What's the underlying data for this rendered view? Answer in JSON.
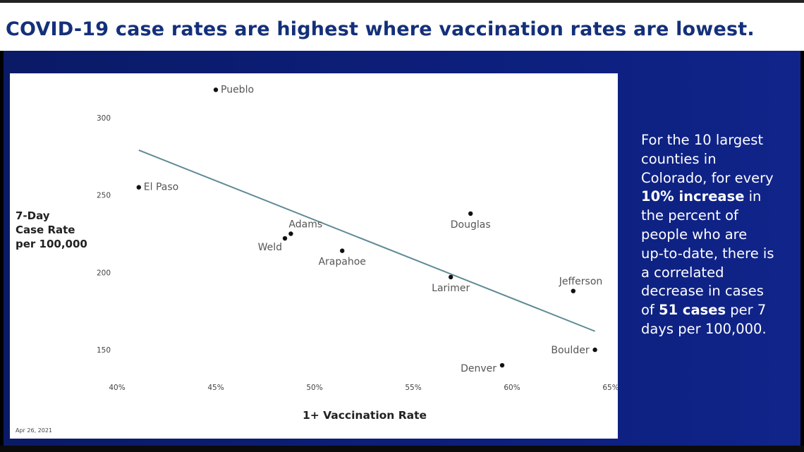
{
  "slide": {
    "title": "COVID-19 case rates are highest where vaccination rates are lowest.",
    "date_stamp": "Apr 26, 2021",
    "note": {
      "line1": "For the 10 largest",
      "line2": "counties in",
      "line3": "Colorado, for every",
      "bold1": "10% increase",
      "line4_rest": " in",
      "line5": "the percent of",
      "line6": "people who are",
      "line7": "up-to-date, there is",
      "line8": "a correlated",
      "line9": "decrease in cases",
      "line10_pre": "of ",
      "bold2": "51 cases",
      "line10_post": " per 7",
      "line11": "days per 100,000."
    }
  },
  "colors": {
    "title": "#14307a",
    "panel": "#0c1f7c",
    "point": "#111111",
    "trend": "#5f8b94",
    "label": "#555555"
  },
  "chart_data": {
    "type": "scatter",
    "title": "",
    "xlabel": "1+ Vaccination Rate",
    "ylabel": [
      "7-Day",
      "Case Rate",
      "per 100,000"
    ],
    "xlim": [
      0.4,
      0.65
    ],
    "ylim": [
      135,
      325
    ],
    "x_ticks": [
      0.4,
      0.45,
      0.5,
      0.55,
      0.6,
      0.65
    ],
    "x_tick_labels": [
      "40%",
      "45%",
      "50%",
      "55%",
      "60%",
      "65%"
    ],
    "y_ticks": [
      150,
      200,
      250,
      300
    ],
    "y_tick_labels": [
      "150",
      "200",
      "250",
      "300"
    ],
    "grid": false,
    "points": [
      {
        "label": "Pueblo",
        "x": 0.45,
        "y": 318,
        "anchor": "start"
      },
      {
        "label": "El Paso",
        "x": 0.411,
        "y": 255,
        "anchor": "start"
      },
      {
        "label": "Adams",
        "x": 0.488,
        "y": 225,
        "anchor": "start"
      },
      {
        "label": "Weld",
        "x": 0.485,
        "y": 222,
        "anchor": "end"
      },
      {
        "label": "Arapahoe",
        "x": 0.514,
        "y": 214,
        "anchor": "middle"
      },
      {
        "label": "Douglas",
        "x": 0.579,
        "y": 238,
        "anchor": "middle"
      },
      {
        "label": "Larimer",
        "x": 0.569,
        "y": 197,
        "anchor": "middle"
      },
      {
        "label": "Jefferson",
        "x": 0.631,
        "y": 188,
        "anchor": "start"
      },
      {
        "label": "Boulder",
        "x": 0.642,
        "y": 150,
        "anchor": "end"
      },
      {
        "label": "Denver",
        "x": 0.595,
        "y": 140,
        "anchor": "end"
      }
    ],
    "trendline": {
      "x": [
        0.411,
        0.642
      ],
      "y": [
        279,
        162
      ]
    }
  }
}
